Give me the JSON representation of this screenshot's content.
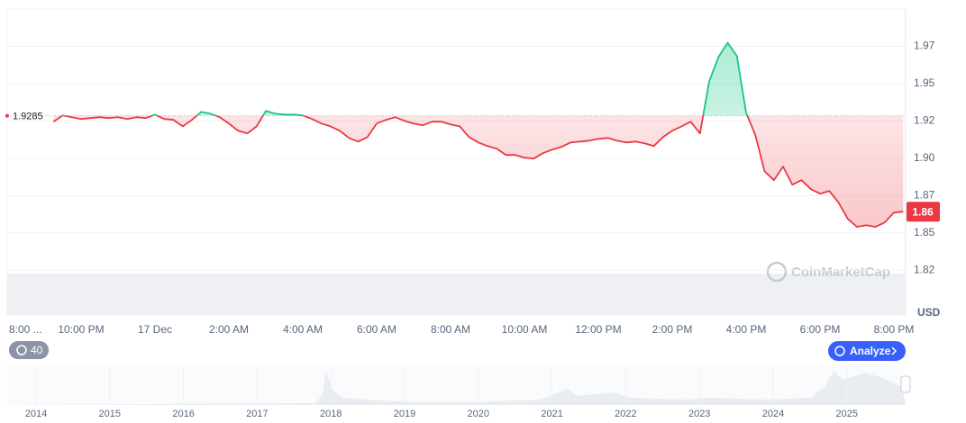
{
  "chart_data": {
    "type": "line",
    "baseline": 1.9285,
    "current_label": "1.86",
    "unit": "USD",
    "up_color": "#16c784",
    "down_color": "#ea3943",
    "grid": true,
    "ylim": [
      1.795,
      2.0
    ],
    "yticks": [
      {
        "value": 1.825,
        "label": "1.82"
      },
      {
        "value": 1.85,
        "label": "1.85"
      },
      {
        "value": 1.875,
        "label": "1.87"
      },
      {
        "value": 1.9,
        "label": "1.90"
      },
      {
        "value": 1.925,
        "label": "1.92"
      },
      {
        "value": 1.95,
        "label": "1.95"
      },
      {
        "value": 1.975,
        "label": "1.97"
      }
    ],
    "categories": [
      "8:00 ...",
      null,
      null,
      null,
      null,
      null,
      null,
      null,
      "10:00 PM",
      null,
      null,
      null,
      null,
      null,
      null,
      null,
      "17 Dec",
      null,
      null,
      null,
      null,
      null,
      null,
      null,
      "2:00 AM",
      null,
      null,
      null,
      null,
      null,
      null,
      null,
      "4:00 AM",
      null,
      null,
      null,
      null,
      null,
      null,
      null,
      "6:00 AM",
      null,
      null,
      null,
      null,
      null,
      null,
      null,
      "8:00 AM",
      null,
      null,
      null,
      null,
      null,
      null,
      null,
      "10:00 AM",
      null,
      null,
      null,
      null,
      null,
      null,
      null,
      "12:00 PM",
      null,
      null,
      null,
      null,
      null,
      null,
      null,
      "2:00 PM",
      null,
      null,
      null,
      null,
      null,
      null,
      null,
      "4:00 PM",
      null,
      null,
      null,
      null,
      null,
      null,
      null,
      "6:00 PM",
      null,
      null,
      null,
      null,
      null,
      null,
      null,
      "8:00 PM",
      null
    ],
    "values": [
      null,
      null,
      null,
      null,
      null,
      1.9245,
      1.9287,
      1.9275,
      1.9263,
      1.9269,
      1.9275,
      1.9269,
      1.9275,
      1.9263,
      1.9275,
      1.9269,
      1.9293,
      1.9263,
      1.9257,
      1.9214,
      1.9257,
      1.9311,
      1.9299,
      1.9275,
      1.9233,
      1.9184,
      1.9166,
      1.9214,
      1.9317,
      1.9299,
      1.9293,
      1.9293,
      1.9287,
      1.9263,
      1.9233,
      1.9214,
      1.9184,
      1.9136,
      1.9112,
      1.9142,
      1.9233,
      1.9257,
      1.9275,
      1.9251,
      1.9233,
      1.9221,
      1.9245,
      1.9245,
      1.9227,
      1.9214,
      1.9142,
      1.9106,
      1.9082,
      1.9064,
      1.9022,
      1.9022,
      1.9004,
      1.8998,
      1.9034,
      1.9058,
      1.9076,
      1.9106,
      1.9112,
      1.9118,
      1.913,
      1.9136,
      1.9118,
      1.9106,
      1.9112,
      1.91,
      1.9082,
      1.9142,
      1.9184,
      1.9214,
      1.9245,
      1.9166,
      1.9515,
      1.9678,
      1.9774,
      1.9684,
      1.9305,
      1.9154,
      1.8913,
      1.8853,
      1.8944,
      1.8823,
      1.8853,
      1.8793,
      1.8763,
      1.8781,
      1.8703,
      1.8594,
      1.854,
      1.8552,
      1.854,
      1.857,
      1.8636,
      1.8642
    ]
  },
  "controls": {
    "history_badge": "40",
    "analyze_button": "Analyze",
    "watermark": "CoinMarketCap"
  },
  "navigator": {
    "years": [
      "2014",
      "2015",
      "2016",
      "2017",
      "2018",
      "2019",
      "2020",
      "2021",
      "2022",
      "2023",
      "2024",
      "2025"
    ]
  }
}
